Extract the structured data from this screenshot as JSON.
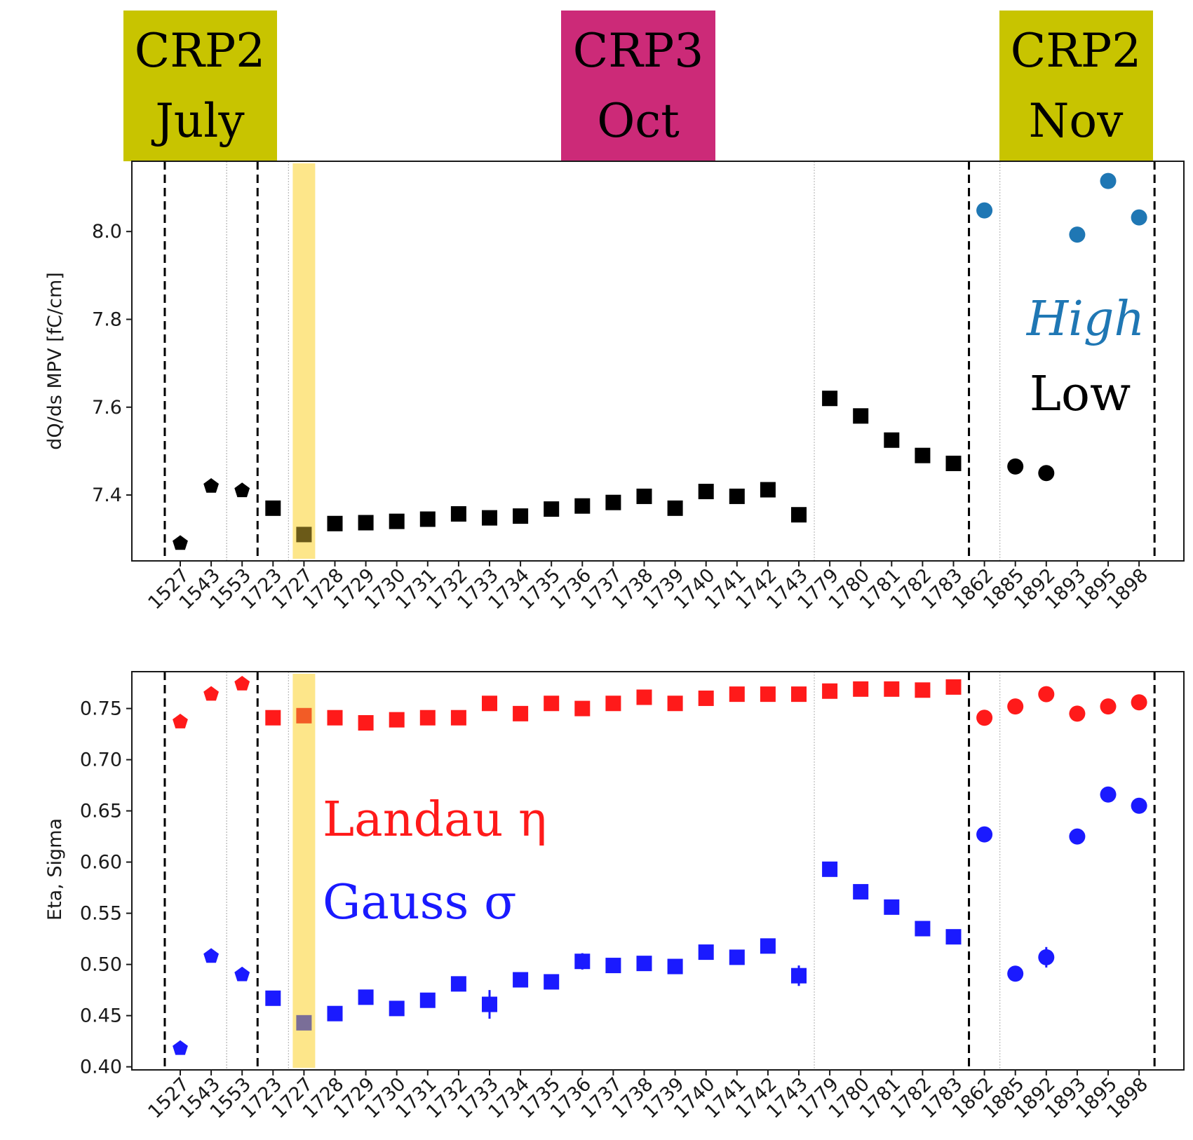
{
  "period_labels": [
    {
      "line1": "CRP2",
      "line2": "July",
      "color": "#c8c400"
    },
    {
      "line1": "CRP3",
      "line2": "Oct",
      "color": "#cc2a78"
    },
    {
      "line1": "CRP2",
      "line2": "Nov",
      "color": "#c8c400"
    }
  ],
  "annotations": {
    "high": "High",
    "low": "Low",
    "landau": "Landau η",
    "gauss": "Gauss σ"
  },
  "colors": {
    "high": "#1f77b4",
    "low": "#000000",
    "landau": "#ff1a1a",
    "gauss": "#1a1aff",
    "highlight_band": "#fde68a"
  },
  "chart_data": [
    {
      "type": "scatter",
      "categories": [
        "1527",
        "1543",
        "1553",
        "1723",
        "1727",
        "1728",
        "1729",
        "1730",
        "1731",
        "1732",
        "1733",
        "1734",
        "1735",
        "1736",
        "1737",
        "1738",
        "1739",
        "1740",
        "1741",
        "1742",
        "1743",
        "1779",
        "1780",
        "1781",
        "1782",
        "1783",
        "1862",
        "1885",
        "1892",
        "1893",
        "1895",
        "1898"
      ],
      "ylabel": "dQ/ds MPV [fC/cm]",
      "ylim": [
        7.25,
        8.16
      ],
      "yticks": [
        7.4,
        7.6,
        7.8,
        8.0
      ],
      "ytick_labels": [
        "7.4",
        "7.6",
        "7.8",
        "8.0"
      ],
      "highlighted_category": "1727",
      "series": [
        {
          "name": "Low",
          "values": [
            7.29,
            7.42,
            7.41,
            7.37,
            7.31,
            7.335,
            7.337,
            7.34,
            7.345,
            7.357,
            7.348,
            7.352,
            7.368,
            7.375,
            7.383,
            7.397,
            7.37,
            7.408,
            7.397,
            7.412,
            7.355,
            7.62,
            7.58,
            7.525,
            7.49,
            7.472,
            null,
            7.465,
            7.45,
            null,
            null,
            null
          ]
        },
        {
          "name": "High",
          "values": [
            null,
            null,
            null,
            null,
            null,
            null,
            null,
            null,
            null,
            null,
            null,
            null,
            null,
            null,
            null,
            null,
            null,
            null,
            null,
            null,
            null,
            null,
            null,
            null,
            null,
            null,
            8.048,
            null,
            null,
            7.993,
            8.115,
            8.032
          ]
        }
      ]
    },
    {
      "type": "scatter",
      "categories": [
        "1527",
        "1543",
        "1553",
        "1723",
        "1727",
        "1728",
        "1729",
        "1730",
        "1731",
        "1732",
        "1733",
        "1734",
        "1735",
        "1736",
        "1737",
        "1738",
        "1739",
        "1740",
        "1741",
        "1742",
        "1743",
        "1779",
        "1780",
        "1781",
        "1782",
        "1783",
        "1862",
        "1885",
        "1892",
        "1893",
        "1895",
        "1898"
      ],
      "ylabel": "Eta, Sigma",
      "ylim": [
        0.397,
        0.786
      ],
      "yticks": [
        0.4,
        0.45,
        0.5,
        0.55,
        0.6,
        0.65,
        0.7,
        0.75
      ],
      "ytick_labels": [
        "0.40",
        "0.45",
        "0.50",
        "0.55",
        "0.60",
        "0.65",
        "0.70",
        "0.75"
      ],
      "highlighted_category": "1727",
      "series": [
        {
          "name": "Landau η",
          "values": [
            0.737,
            0.764,
            0.774,
            0.741,
            0.743,
            0.741,
            0.736,
            0.739,
            0.741,
            0.741,
            0.755,
            0.745,
            0.755,
            0.75,
            0.755,
            0.761,
            0.755,
            0.76,
            0.764,
            0.764,
            0.764,
            0.767,
            0.769,
            0.769,
            0.768,
            0.771,
            0.741,
            0.752,
            0.764,
            0.745,
            0.752,
            0.756
          ]
        },
        {
          "name": "Gauss σ",
          "values": [
            0.418,
            0.508,
            0.49,
            0.467,
            0.443,
            0.452,
            0.468,
            0.457,
            0.465,
            0.481,
            0.461,
            0.485,
            0.483,
            0.503,
            0.499,
            0.501,
            0.498,
            0.512,
            0.507,
            0.518,
            0.489,
            0.593,
            0.571,
            0.556,
            0.535,
            0.527,
            0.627,
            0.491,
            0.507,
            0.625,
            0.666,
            0.655
          ]
        },
        {
          "name": "Gauss σ error",
          "values": [
            0,
            0,
            0,
            0,
            0,
            0,
            0,
            0.006,
            0,
            0,
            0.014,
            0.006,
            0,
            0.008,
            0.007,
            0.006,
            0,
            0,
            0,
            0,
            0.01,
            0,
            0.007,
            0,
            0,
            0,
            0,
            0,
            0.01,
            0,
            0,
            0
          ]
        }
      ]
    }
  ]
}
